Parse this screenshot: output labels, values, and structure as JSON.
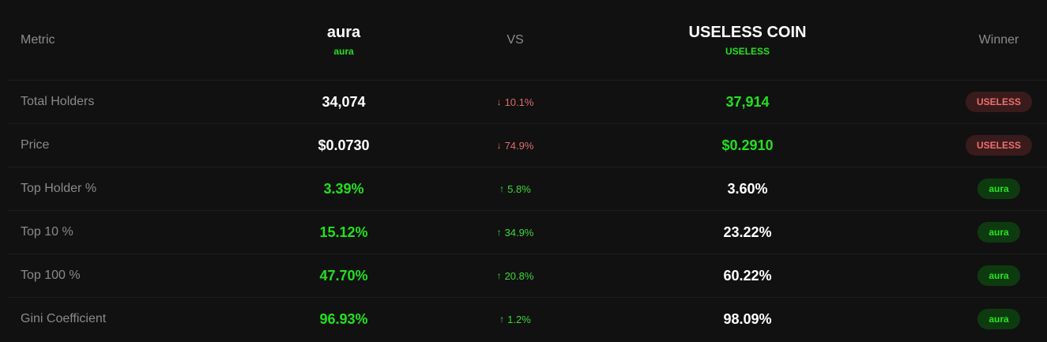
{
  "header": {
    "metric_label": "Metric",
    "vs_label": "VS",
    "winner_label": "Winner",
    "token_a": {
      "name": "aura",
      "symbol": "aura"
    },
    "token_b": {
      "name": "USELESS COIN",
      "symbol": "USELESS"
    }
  },
  "rows": [
    {
      "metric": "Total Holders",
      "a": "34,074",
      "a_color": "white",
      "diff": "10.1%",
      "diff_dir": "down",
      "b": "37,914",
      "b_color": "green",
      "winner": "USELESS",
      "winner_color": "red"
    },
    {
      "metric": "Price",
      "a": "$0.0730",
      "a_color": "white",
      "diff": "74.9%",
      "diff_dir": "down",
      "b": "$0.2910",
      "b_color": "green",
      "winner": "USELESS",
      "winner_color": "red"
    },
    {
      "metric": "Top Holder %",
      "a": "3.39%",
      "a_color": "green",
      "diff": "5.8%",
      "diff_dir": "up",
      "b": "3.60%",
      "b_color": "white",
      "winner": "aura",
      "winner_color": "green"
    },
    {
      "metric": "Top 10 %",
      "a": "15.12%",
      "a_color": "green",
      "diff": "34.9%",
      "diff_dir": "up",
      "b": "23.22%",
      "b_color": "white",
      "winner": "aura",
      "winner_color": "green"
    },
    {
      "metric": "Top 100 %",
      "a": "47.70%",
      "a_color": "green",
      "diff": "20.8%",
      "diff_dir": "up",
      "b": "60.22%",
      "b_color": "white",
      "winner": "aura",
      "winner_color": "green"
    },
    {
      "metric": "Gini Coefficient",
      "a": "96.93%",
      "a_color": "green",
      "diff": "1.2%",
      "diff_dir": "up",
      "b": "98.09%",
      "b_color": "white",
      "winner": "aura",
      "winner_color": "green"
    }
  ],
  "icons": {
    "down": "arrow-down-icon",
    "up": "arrow-up-icon"
  },
  "colors": {
    "background": "#111111",
    "green": "#22e01e",
    "red": "#ef6f6f",
    "red_badge_bg": "#3a1b1b",
    "green_badge_bg": "#0e3a10"
  }
}
